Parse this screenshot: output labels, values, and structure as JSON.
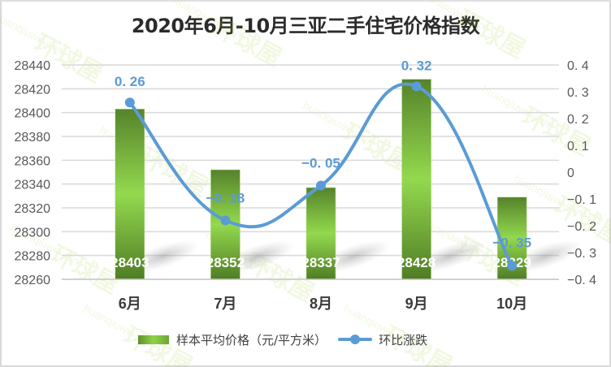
{
  "title": "2020年6月-10月三亚二手住宅价格指数",
  "colors": {
    "bar_dark": "#4e7a24",
    "bar_light": "#92d84d",
    "line": "#5b9bd5",
    "grid": "#d9d9d9",
    "axis_text": "#595959",
    "title_text": "#2b2b2b"
  },
  "legend": {
    "bar_label": "样本平均价格（元/平方米）",
    "line_label": "环比涨跌"
  },
  "watermark": {
    "cn": "环球屋",
    "en": "huanqiuwu.com"
  },
  "chart_data": {
    "type": "bar+line",
    "title": "2020年6月-10月三亚二手住宅价格指数",
    "categories": [
      "6月",
      "7月",
      "8月",
      "9月",
      "10月"
    ],
    "series": [
      {
        "name": "样本平均价格（元/平方米）",
        "type": "bar",
        "axis": "left",
        "values": [
          28403,
          28352,
          28337,
          28428,
          28329
        ],
        "labels": [
          "28403",
          "28352",
          "28337",
          "28428",
          "28329"
        ]
      },
      {
        "name": "环比涨跌",
        "type": "line",
        "axis": "right",
        "smooth": true,
        "values": [
          0.26,
          -0.18,
          -0.05,
          0.32,
          -0.35
        ],
        "labels": [
          "0. 26",
          "−0. 18",
          "−0. 05",
          "0. 32",
          "−0. 35"
        ]
      }
    ],
    "left_axis": {
      "ylim": [
        28260,
        28440
      ],
      "ticks": [
        "28440",
        "28420",
        "28400",
        "28380",
        "28360",
        "28340",
        "28320",
        "28300",
        "28280",
        "28260"
      ]
    },
    "right_axis": {
      "ylim": [
        -0.4,
        0.4
      ],
      "ticks": [
        "0. 4",
        "0. 3",
        "0. 2",
        "0. 1",
        "0",
        "−0. 1",
        "−0. 2",
        "−0. 3",
        "−0. 4"
      ]
    },
    "grid": true,
    "legend_position": "bottom"
  }
}
